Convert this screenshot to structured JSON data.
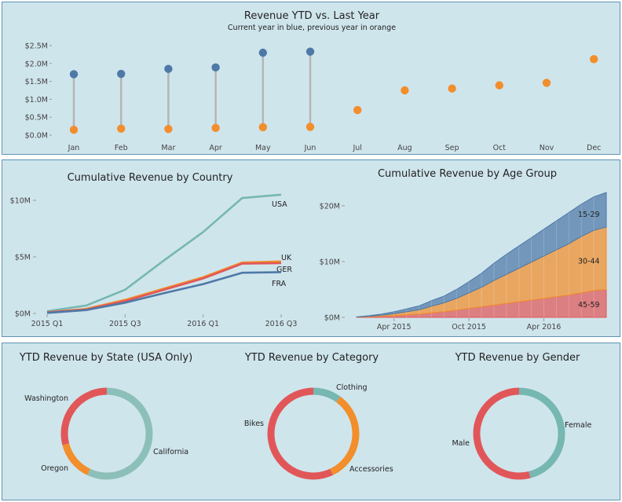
{
  "chart_data": [
    {
      "type": "scatter",
      "title": "Revenue YTD vs. Last Year",
      "subtitle": "Current year in blue, previous year in orange",
      "categories": [
        "Jan",
        "Feb",
        "Mar",
        "Apr",
        "May",
        "Jun",
        "Jul",
        "Aug",
        "Sep",
        "Oct",
        "Nov",
        "Dec"
      ],
      "series": [
        {
          "values": [
            1.7,
            1.71,
            1.85,
            1.89,
            2.3,
            2.33,
            null,
            null,
            null,
            null,
            null,
            null
          ]
        },
        {
          "values": [
            0.15,
            0.18,
            0.17,
            0.2,
            0.22,
            0.23,
            0.7,
            1.25,
            1.3,
            1.39,
            1.46,
            2.12
          ]
        }
      ],
      "ylim": [
        0,
        2.5
      ],
      "yticks": [
        0,
        0.5,
        1.0,
        1.5,
        2.0,
        2.5
      ],
      "ytick_labels": [
        "$0.0M",
        "$0.5M",
        "$1.0M",
        "$1.5M",
        "$2.0M",
        "$2.5M"
      ],
      "colors": {
        "current": "#4e79a7",
        "previous": "#f28e2b",
        "stem": "#b5b5b5"
      }
    },
    {
      "type": "line",
      "title": "Cumulative Revenue by Country",
      "x": [
        0,
        1,
        2,
        3,
        4,
        5,
        6,
        7
      ],
      "xticks": [
        0,
        2,
        4,
        6
      ],
      "xtick_labels": [
        "2015 Q1",
        "2015 Q3",
        "2016 Q1",
        "2016 Q3"
      ],
      "series": [
        {
          "name": "USA",
          "color": "#76b7b2",
          "values": [
            0.2,
            0.7,
            2.1,
            4.7,
            7.2,
            10.2,
            10.5,
            null
          ]
        },
        {
          "name": "UK",
          "color": "#f28e2b",
          "values": [
            0.1,
            0.4,
            1.2,
            2.2,
            3.2,
            4.5,
            4.6,
            null
          ]
        },
        {
          "name": "GER",
          "color": "#e15759",
          "values": [
            0.1,
            0.35,
            1.1,
            2.1,
            3.1,
            4.4,
            4.45,
            null
          ]
        },
        {
          "name": "FRA",
          "color": "#4e79a7",
          "values": [
            0.05,
            0.3,
            0.95,
            1.8,
            2.6,
            3.6,
            3.65,
            null
          ]
        }
      ],
      "ylim": [
        0,
        11
      ],
      "yticks": [
        0,
        5,
        10
      ],
      "ytick_labels": [
        "$0M",
        "$5M",
        "$10M"
      ]
    },
    {
      "type": "area",
      "title": "Cumulative Revenue by Age Group",
      "x": [
        0,
        1,
        2,
        3,
        4,
        5,
        6,
        7,
        8,
        9,
        10,
        11,
        12,
        13,
        14,
        15,
        16,
        17,
        18,
        19,
        20
      ],
      "xticks": [
        3,
        9,
        15
      ],
      "xtick_labels": [
        "Apr 2015",
        "Oct 2015",
        "Apr 2016"
      ],
      "stacked": true,
      "series": [
        {
          "name": "45-59",
          "color": "#e15759",
          "values": [
            0.05,
            0.1,
            0.2,
            0.3,
            0.45,
            0.6,
            0.8,
            1.0,
            1.3,
            1.6,
            1.9,
            2.2,
            2.5,
            2.8,
            3.1,
            3.4,
            3.7,
            4.0,
            4.4,
            4.8,
            5.0
          ]
        },
        {
          "name": "30-44",
          "color": "#f28e2b",
          "values": [
            0.02,
            0.1,
            0.2,
            0.35,
            0.55,
            0.75,
            1.2,
            1.6,
            2.1,
            2.8,
            3.5,
            4.4,
            5.2,
            6.0,
            6.8,
            7.6,
            8.4,
            9.2,
            10.1,
            10.8,
            11.2
          ]
        },
        {
          "name": "15-29",
          "color": "#4e79a7",
          "values": [
            0.03,
            0.1,
            0.2,
            0.35,
            0.5,
            0.7,
            1.0,
            1.2,
            1.6,
            2.0,
            2.5,
            3.1,
            3.6,
            4.0,
            4.4,
            4.8,
            5.2,
            5.6,
            5.8,
            6.0,
            6.2
          ]
        }
      ],
      "ylim": [
        0,
        24
      ],
      "yticks": [
        0,
        10,
        20
      ],
      "ytick_labels": [
        "$0M",
        "$10M",
        "$20M"
      ]
    },
    {
      "type": "pie",
      "title": "YTD Revenue by State (USA Only)",
      "labels": [
        "California",
        "Oregon",
        "Washington"
      ],
      "values": [
        57,
        14,
        29
      ],
      "colors": [
        "#8dbfb9",
        "#f28e2b",
        "#e15759"
      ]
    },
    {
      "type": "pie",
      "title": "YTD Revenue by Category",
      "labels": [
        "Clothing",
        "Accessories",
        "Bikes"
      ],
      "values": [
        10,
        33,
        57
      ],
      "colors": [
        "#76b7b2",
        "#f28e2b",
        "#e15759"
      ]
    },
    {
      "type": "pie",
      "title": "YTD Revenue by Gender",
      "labels": [
        "Female",
        "Male"
      ],
      "values": [
        46,
        54
      ],
      "colors": [
        "#76b7b2",
        "#e15759"
      ]
    }
  ]
}
